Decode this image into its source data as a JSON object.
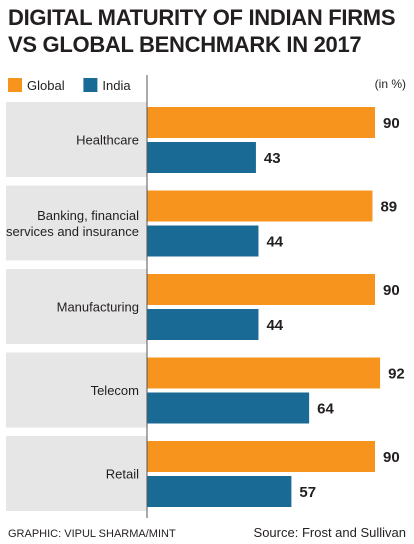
{
  "chart_data": {
    "type": "bar",
    "orientation": "horizontal",
    "title": "DIGITAL MATURITY OF INDIAN FIRMS VS GLOBAL BENCHMARK IN 2017",
    "unit": "(in %)",
    "categories": [
      "Healthcare",
      "Banking, financial services and insurance",
      "Manufacturing",
      "Telecom",
      "Retail"
    ],
    "category_lines": [
      [
        "Healthcare"
      ],
      [
        "Banking, financial",
        "services and insurance"
      ],
      [
        "Manufacturing"
      ],
      [
        "Telecom"
      ],
      [
        "Retail"
      ]
    ],
    "series": [
      {
        "name": "Global",
        "color": "#f7941d",
        "values": [
          90,
          89,
          90,
          92,
          90
        ]
      },
      {
        "name": "India",
        "color": "#1a6a96",
        "values": [
          43,
          44,
          44,
          64,
          57
        ]
      }
    ],
    "xlim": [
      0,
      100
    ],
    "legend_position": "top-left",
    "grid": false
  },
  "footer": {
    "credit": "GRAPHIC: VIPUL SHARMA/MINT",
    "source": "Source: Frost and Sullivan"
  },
  "colors": {
    "panel_background": "#e6e6e6",
    "axis": "#555555"
  }
}
